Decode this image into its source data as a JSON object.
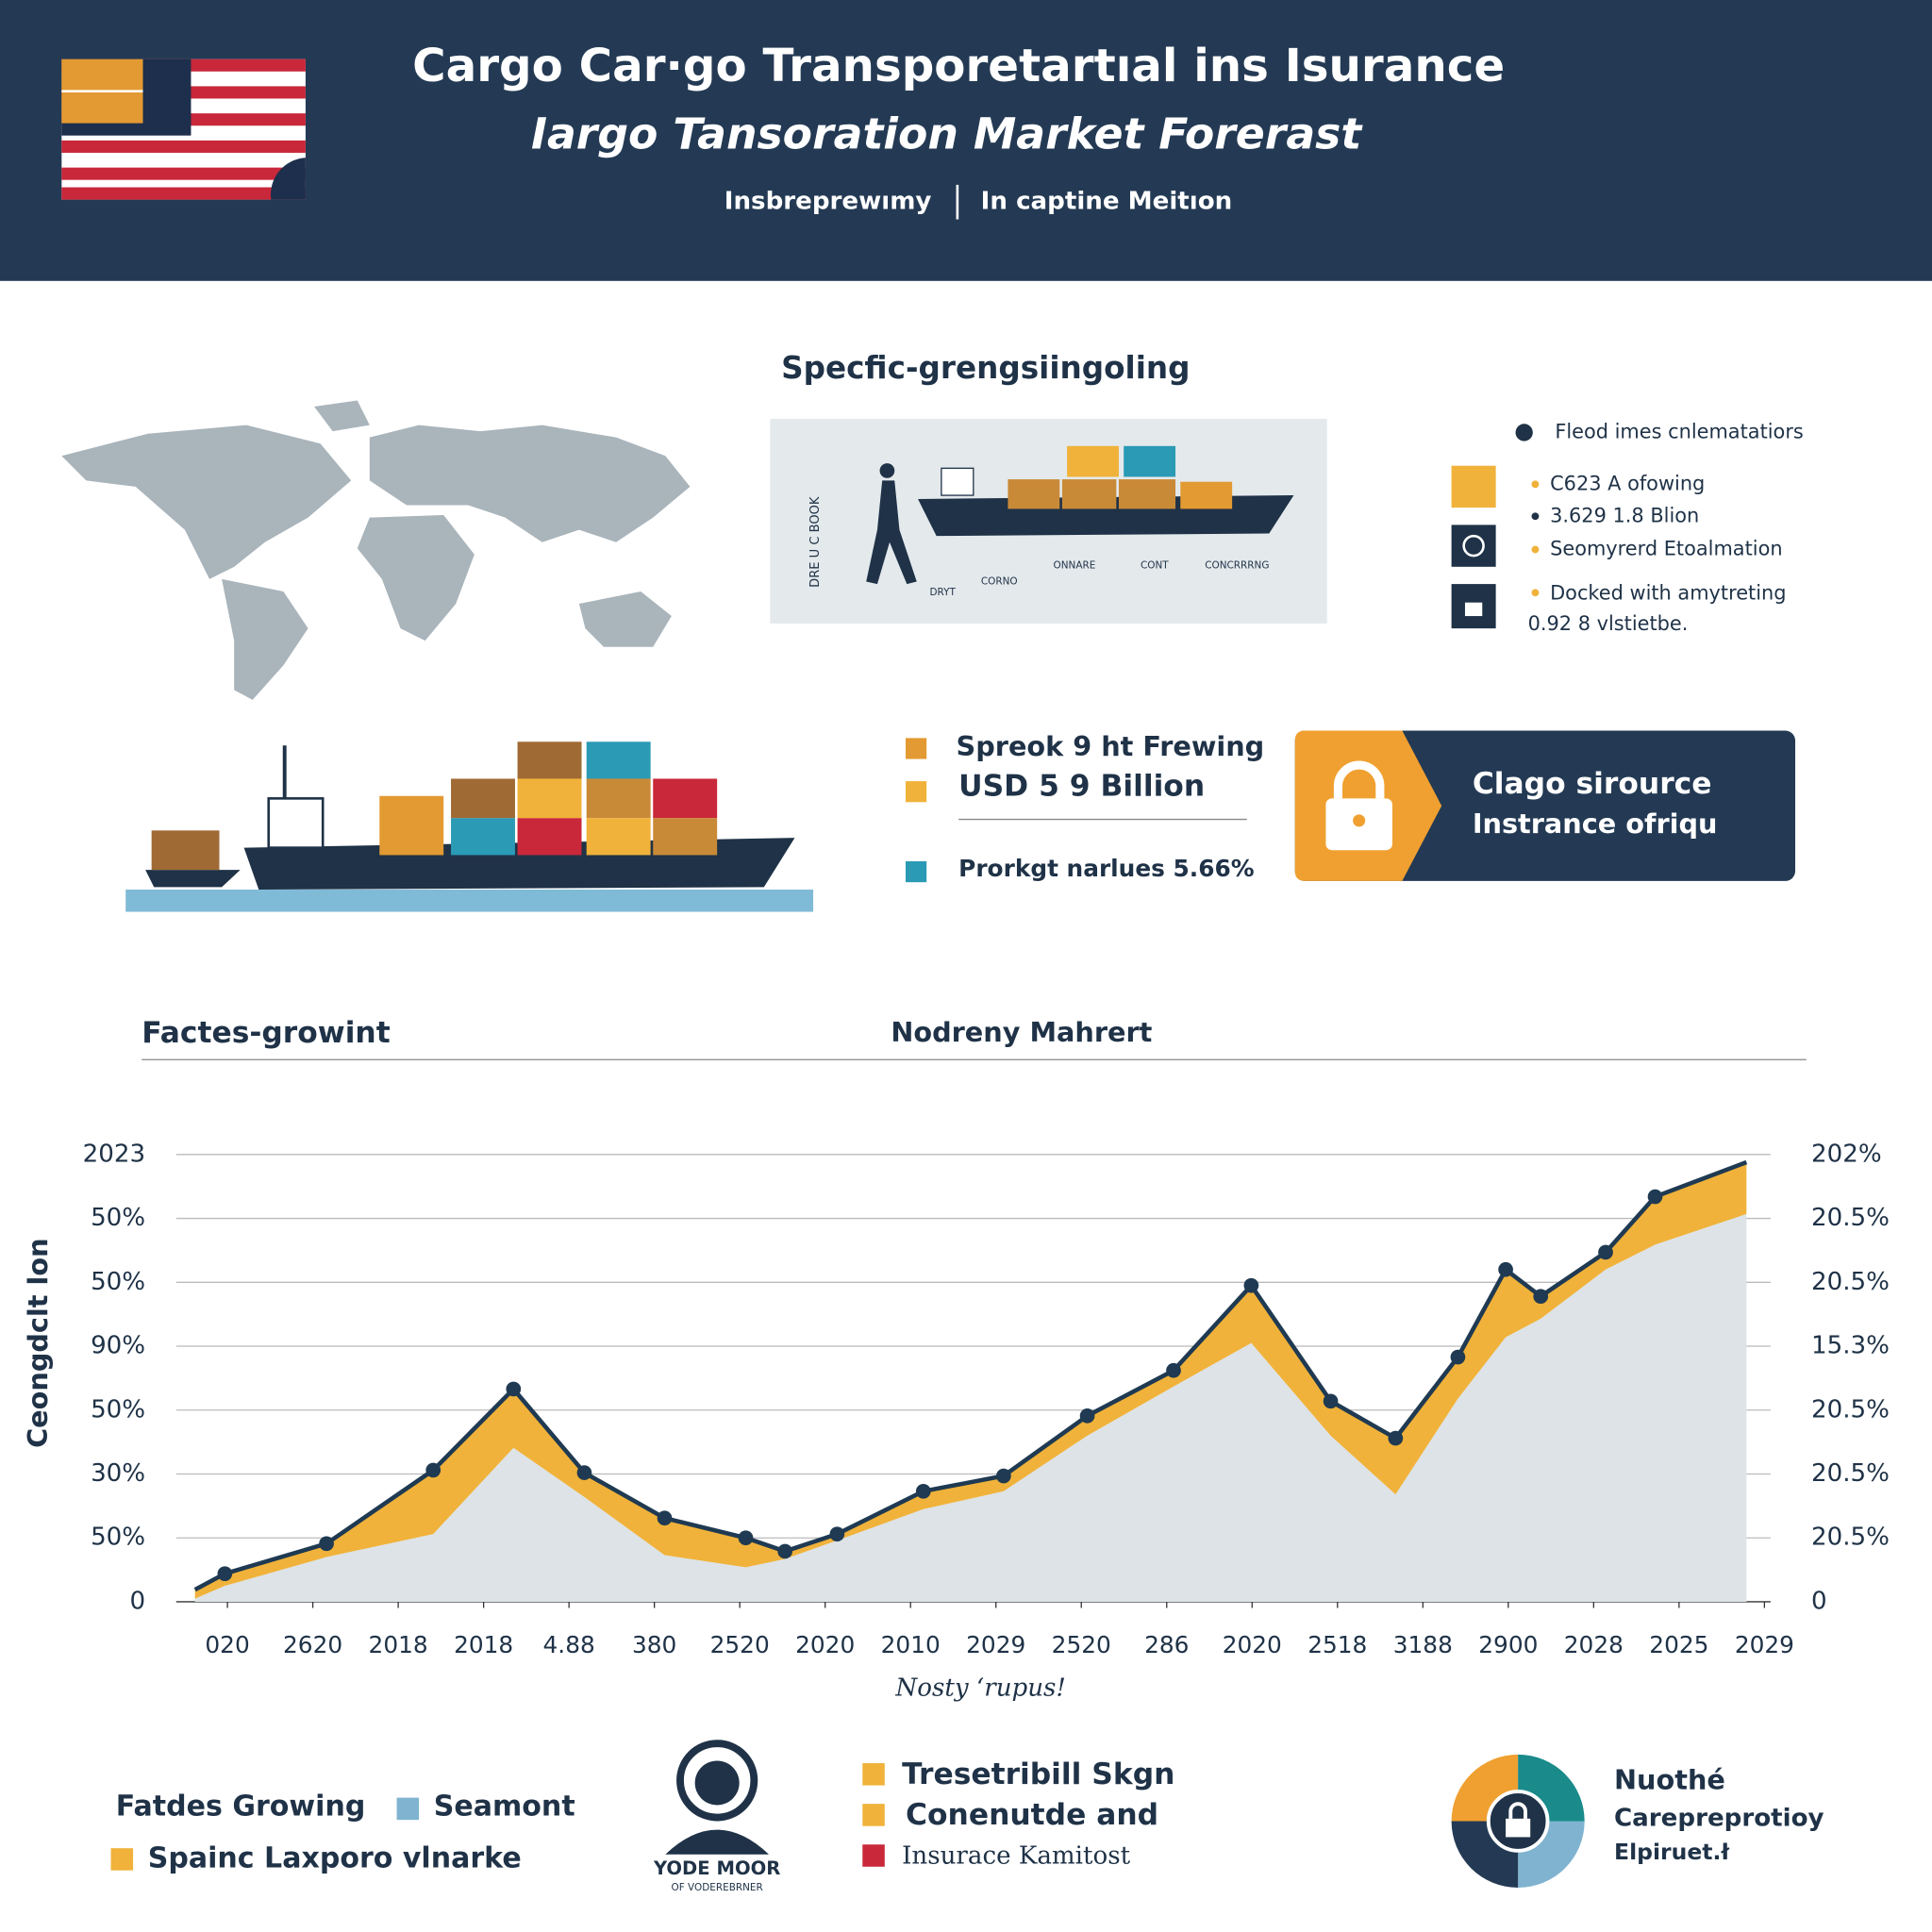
{
  "header": {
    "title": "Cargo Car·go Transporetartıal ins Isurance",
    "subtitle": "Iargo Tansoration Market Forerast",
    "tagline_left": "Insbreprewımy",
    "tagline_right": "In captine Meitıon"
  },
  "section": {
    "heading": "Specfic-grengsiingoling",
    "diagram_labels": [
      "DRE U C BOOK",
      "DRYT",
      "CORNO",
      "ONNARE",
      "CONT",
      "CONCRRRNG"
    ],
    "legend": [
      "Fleod imes cnlematatiors",
      "C623 A ofowing",
      "3.629 1.8 Blion",
      "Seomyrerd Etoalmation",
      "Docked with amytreting",
      "0.92 8 vlstietbe."
    ],
    "stats": [
      "Spreok 9 ht Frewing",
      "USD 5 9 Billion",
      "Prorkgt narlues 5.66%"
    ],
    "banner": [
      "Clago sirource",
      "Instrance ofriqu"
    ]
  },
  "chart_headings": [
    "Factes-growint",
    "Nodreny Mahrert"
  ],
  "chart_data": {
    "type": "line",
    "ylabel": "Ceongdclt lon",
    "xlabel": "Nosty ʻrupus!",
    "xlim": [
      -0.6,
      18
    ],
    "xticks": [
      {
        "value": 0,
        "label": "020"
      },
      {
        "value": 1,
        "label": "2620"
      },
      {
        "value": 2,
        "label": "2018"
      },
      {
        "value": 3,
        "label": "2018"
      },
      {
        "value": 4,
        "label": "4.88"
      },
      {
        "value": 5,
        "label": "380"
      },
      {
        "value": 6,
        "label": "2520"
      },
      {
        "value": 7,
        "label": "2020"
      },
      {
        "value": 8,
        "label": "2010"
      },
      {
        "value": 9,
        "label": "2029"
      },
      {
        "value": 10,
        "label": "2520"
      },
      {
        "value": 11,
        "label": "286"
      },
      {
        "value": 12,
        "label": "2020"
      },
      {
        "value": 13,
        "label": "2518"
      },
      {
        "value": 14,
        "label": "3188"
      },
      {
        "value": 15,
        "label": "2900"
      },
      {
        "value": 16,
        "label": "2028"
      },
      {
        "value": 17,
        "label": "2025"
      },
      {
        "value": 18,
        "label": "2029"
      }
    ],
    "ylim": [
      0,
      7
    ],
    "yticks": [
      0,
      {
        "value": 1,
        "label": "50%"
      },
      {
        "value": 2,
        "label": "30%"
      },
      {
        "value": 3,
        "label": "50%"
      },
      {
        "value": 4,
        "label": "90%"
      },
      {
        "value": 5,
        "label": "50%"
      },
      {
        "value": 6,
        "label": "50%"
      },
      {
        "value": 7,
        "label": "2023"
      }
    ],
    "y2lim": [
      0,
      7
    ],
    "y2ticks": [
      0,
      {
        "value": 1,
        "label": "20.5%"
      },
      {
        "value": 2,
        "label": "20.5%"
      },
      {
        "value": 3,
        "label": "20.5%"
      },
      {
        "value": 4,
        "label": "15.3%"
      },
      {
        "value": 5,
        "label": "20.5%"
      },
      {
        "value": 6,
        "label": "20.5%"
      },
      {
        "value": 7,
        "label": "202%"
      }
    ],
    "grid": true,
    "x": [
      -0.38,
      -0.03,
      1.16,
      2.41,
      3.35,
      4.18,
      5.12,
      6.07,
      6.53,
      7.14,
      8.15,
      9.09,
      10.07,
      11.08,
      11.99,
      12.92,
      13.68,
      14.41,
      14.97,
      15.38,
      16.14,
      16.72,
      17.79
    ],
    "series": [
      {
        "color": "#1f3a52",
        "values": [
          0.19,
          0.44,
          0.91,
          2.06,
          3.33,
          2.02,
          1.31,
          1.0,
          0.79,
          1.06,
          1.73,
          1.97,
          2.91,
          3.62,
          4.95,
          3.14,
          2.56,
          3.83,
          5.2,
          4.78,
          5.47,
          6.34,
          6.88
        ]
      },
      {
        "color": "#f0b23a",
        "values": [
          0.05,
          0.25,
          0.7,
          1.06,
          2.41,
          1.64,
          0.73,
          0.54,
          0.67,
          0.96,
          1.45,
          1.73,
          2.6,
          3.37,
          4.05,
          2.6,
          1.68,
          3.18,
          4.14,
          4.43,
          5.2,
          5.59,
          6.07
        ]
      }
    ],
    "area_color": "#dde3e6"
  },
  "bottom": {
    "legend": [
      "Fatdes Growing",
      "Seamont",
      "Spainc Laxporo vlnarke"
    ],
    "person": [
      "YODE MOOR",
      "OF VODEREBRNER"
    ],
    "list": [
      "Tresetribill Skgn",
      "Conenutde and",
      "Insurace Kamitost"
    ],
    "note": [
      "Nuothé",
      "Carepreprotioy",
      "Elpiruet.ł"
    ]
  }
}
